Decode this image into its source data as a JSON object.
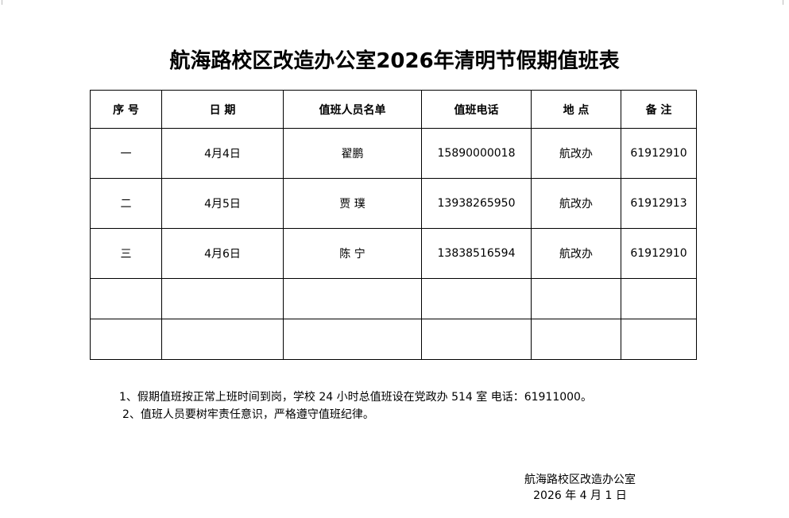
{
  "title": "航海路校区改造办公室2026年清明节假期值班表",
  "table": {
    "headers": [
      "序 号",
      "日 期",
      "值班人员名单",
      "值班电话",
      "地 点",
      "备 注"
    ],
    "rows": [
      [
        "一",
        "4月4日",
        "翟鹏",
        "15890000018",
        "航改办",
        "61912910"
      ],
      [
        "二",
        "4月5日",
        "贾 璞",
        "13938265950",
        "航改办",
        "61912913"
      ],
      [
        "三",
        "4月6日",
        "陈 宁",
        "13838516594",
        "航改办",
        "61912910"
      ],
      [
        "",
        "",
        "",
        "",
        "",
        ""
      ],
      [
        "",
        "",
        "",
        "",
        "",
        ""
      ]
    ]
  },
  "notes": [
    "1、假期值班按正常上班时间到岗，学校 24 小时总值班设在党政办 514 室  电话：61911000。",
    "2、值班人员要树牢责任意识，严格遵守值班纪律。"
  ],
  "signature": {
    "office": "航海路校区改造办公室",
    "date": "2026 年 4 月 1 日"
  }
}
